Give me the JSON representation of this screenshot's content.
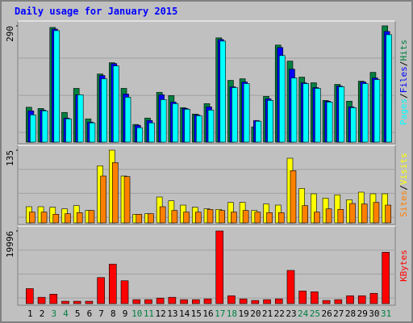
{
  "chart_data": [
    {
      "type": "bar",
      "title": "Daily usage for January 2015",
      "ylim": [
        0,
        290
      ],
      "yticks": [
        290
      ],
      "separator": "/",
      "series": [
        {
          "name": "Hits",
          "color": "#008040",
          "values": [
            87,
            84,
            286,
            74,
            134,
            58,
            170,
            198,
            134,
            44,
            60,
            124,
            116,
            86,
            70,
            96,
            260,
            154,
            158,
            38,
            114,
            242,
            202,
            162,
            148,
            104,
            144,
            102,
            152,
            174,
            290
          ]
        },
        {
          "name": "Files",
          "color": "#0000FF",
          "values": [
            78,
            80,
            282,
            60,
            118,
            50,
            166,
            196,
            120,
            42,
            54,
            118,
            100,
            84,
            68,
            88,
            256,
            138,
            150,
            54,
            108,
            236,
            182,
            148,
            136,
            102,
            140,
            88,
            150,
            160,
            276
          ]
        },
        {
          "name": "Pages",
          "color": "#00FFFF",
          "values": [
            68,
            78,
            278,
            58,
            118,
            48,
            158,
            190,
            112,
            36,
            48,
            106,
            96,
            82,
            66,
            80,
            252,
            136,
            146,
            52,
            104,
            216,
            160,
            146,
            134,
            100,
            138,
            86,
            146,
            156,
            268
          ]
        }
      ]
    },
    {
      "type": "bar",
      "ylim": [
        0,
        135
      ],
      "yticks": [
        135
      ],
      "separator": "/",
      "series": [
        {
          "name": "Visits",
          "color": "#FFFF00",
          "values": [
            30,
            30,
            29,
            26,
            32,
            23,
            106,
            135,
            87,
            16,
            17,
            48,
            41,
            33,
            29,
            26,
            25,
            38,
            38,
            23,
            35,
            33,
            120,
            64,
            54,
            46,
            52,
            43,
            57,
            54,
            54
          ]
        },
        {
          "name": "Sites",
          "color": "#FF8000",
          "values": [
            20,
            20,
            16,
            17,
            19,
            23,
            87,
            112,
            86,
            16,
            17,
            30,
            23,
            20,
            20,
            25,
            23,
            20,
            23,
            20,
            19,
            19,
            97,
            32,
            20,
            26,
            25,
            36,
            35,
            38,
            33
          ]
        }
      ]
    },
    {
      "type": "bar",
      "ylim": [
        0,
        19996
      ],
      "yticks": [
        19996
      ],
      "categories": [
        "1",
        "2",
        "3",
        "4",
        "5",
        "6",
        "7",
        "8",
        "9",
        "10",
        "11",
        "12",
        "13",
        "14",
        "15",
        "16",
        "17",
        "18",
        "19",
        "20",
        "21",
        "22",
        "23",
        "24",
        "25",
        "26",
        "27",
        "28",
        "29",
        "30",
        "31"
      ],
      "category_label_colors": [
        "#000",
        "#000",
        "#008040",
        "#008040",
        "#000",
        "#000",
        "#000",
        "#000",
        "#000",
        "#008040",
        "#008040",
        "#000",
        "#000",
        "#000",
        "#000",
        "#000",
        "#008040",
        "#008040",
        "#000",
        "#000",
        "#000",
        "#000",
        "#000",
        "#008040",
        "#008040",
        "#000",
        "#000",
        "#000",
        "#000",
        "#000",
        "#008040"
      ],
      "series": [
        {
          "name": "KBytes",
          "color": "#FF0000",
          "values": [
            4130,
            1740,
            2600,
            650,
            650,
            650,
            7170,
            10860,
            6300,
            1090,
            1090,
            1520,
            1740,
            1090,
            1090,
            1300,
            19996,
            2170,
            1300,
            870,
            1090,
            1300,
            9130,
            3480,
            3260,
            870,
            1090,
            2170,
            2170,
            2830,
            14130
          ]
        }
      ]
    }
  ]
}
